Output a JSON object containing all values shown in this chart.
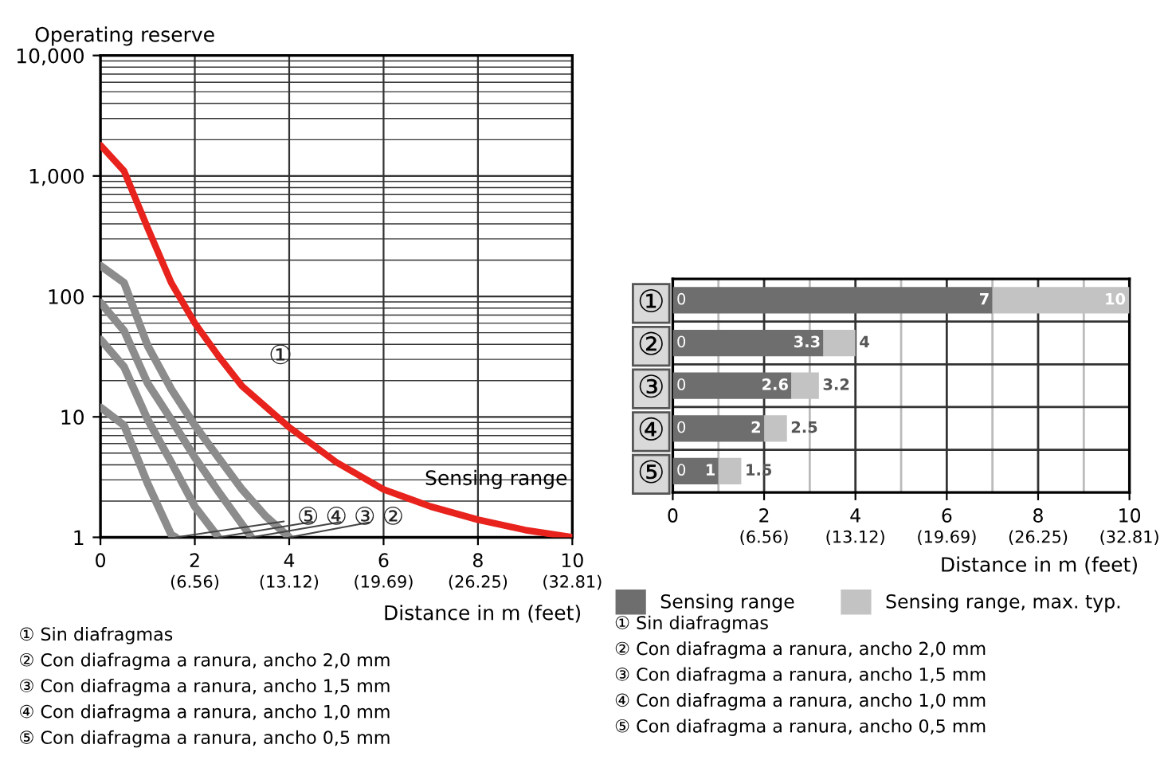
{
  "chart_data": [
    {
      "type": "line",
      "ylabel": "Operating reserve",
      "xlabel": "Distance in m (feet)",
      "log": "y",
      "grid": true,
      "legend": false,
      "marker": "none",
      "line_style": "solid",
      "xlim": [
        0,
        10
      ],
      "ylim": [
        1,
        10000
      ],
      "xticks": [
        0,
        2,
        4,
        6,
        8,
        10
      ],
      "x2lim": [
        0,
        32.81
      ],
      "x2ticks": [
        {
          "value": 6.56,
          "label": "(6.56)"
        },
        {
          "value": 13.12,
          "label": "(13.12)"
        },
        {
          "value": 19.69,
          "label": "(19.69)"
        },
        {
          "value": 26.25,
          "label": "(26.25)"
        },
        {
          "value": 32.81,
          "label": "(32.81)"
        }
      ],
      "yticks": [
        1,
        10,
        100,
        {
          "value": 1000,
          "label": "1,000"
        },
        {
          "value": 10000,
          "label": "10,000"
        }
      ],
      "series": [
        {
          "name": "①",
          "color": "#e8221c",
          "x": [
            0,
            0.5,
            1,
            1.5,
            2,
            2.5,
            3,
            4,
            5,
            6,
            7,
            8,
            9,
            10
          ],
          "values": [
            1800,
            1100,
            370,
            130,
            60,
            32,
            18,
            8.2,
            4.2,
            2.5,
            1.8,
            1.4,
            1.15,
            1
          ]
        },
        {
          "name": "②",
          "color": "#8c8c8c",
          "x": [
            0,
            0.5,
            1,
            1.5,
            2,
            2.5,
            3,
            3.5,
            4
          ],
          "values": [
            180,
            130,
            39,
            17,
            8.5,
            4.6,
            2.5,
            1.5,
            1
          ]
        },
        {
          "name": "③",
          "color": "#8c8c8c",
          "x": [
            0,
            0.5,
            1,
            1.5,
            2,
            2.5,
            3.2
          ],
          "values": [
            89,
            52,
            19,
            9.5,
            4.6,
            2.4,
            1
          ]
        },
        {
          "name": "④",
          "color": "#8c8c8c",
          "x": [
            0,
            0.5,
            1,
            1.5,
            2,
            2.5
          ],
          "values": [
            44,
            26,
            9.5,
            4.2,
            1.8,
            1
          ]
        },
        {
          "name": "⑤",
          "color": "#8c8c8c",
          "x": [
            0,
            0.5,
            1,
            1.5,
            1.6
          ],
          "values": [
            12,
            8.5,
            2.8,
            1.05,
            1
          ]
        }
      ],
      "annotations": [
        "Sensing range",
        "① Sin diafragmas",
        "② Con diafragma a ranura, ancho 2,0 mm",
        "③ Con diafragma a ranura, ancho 1,5 mm",
        "④ Con diafragma a ranura, ancho 1,0 mm",
        "⑤ Con diafragma a ranura, ancho 0,5 mm"
      ]
    },
    {
      "type": "bar",
      "orientation": "horizontal",
      "stacked": true,
      "xlabel": "Distance in m (feet)",
      "grid": true,
      "legend": "bottom",
      "categories": [
        "①",
        "②",
        "③",
        "④",
        "⑤"
      ],
      "xlim": [
        0,
        10
      ],
      "xticks": [
        0,
        2,
        4,
        6,
        8,
        10
      ],
      "x2lim": [
        0,
        32.81
      ],
      "x2ticks": [
        {
          "value": 6.56,
          "label": "(6.56)"
        },
        {
          "value": 13.12,
          "label": "(13.12)"
        },
        {
          "value": 19.69,
          "label": "(19.69)"
        },
        {
          "value": 26.25,
          "label": "(26.25)"
        },
        {
          "value": 32.81,
          "label": "(32.81)"
        }
      ],
      "series": [
        {
          "name": "Sensing range",
          "color": "#6e6e6e",
          "values": [
            7,
            3.3,
            2.6,
            2,
            1
          ]
        },
        {
          "name": "Sensing range, max. typ.",
          "color": "#c3c3c3",
          "values": [
            3,
            0.7,
            0.6,
            0.5,
            0.5
          ]
        }
      ],
      "annotations": [
        {
          "text": "0",
          "x": 0,
          "y": "①"
        },
        {
          "text": "0",
          "x": 0,
          "y": "②"
        },
        {
          "text": "0",
          "x": 0,
          "y": "③"
        },
        {
          "text": "0",
          "x": 0,
          "y": "④"
        },
        {
          "text": "0",
          "x": 0,
          "y": "⑤"
        },
        {
          "text": "7",
          "x": 7,
          "y": "①"
        },
        {
          "text": "3.3",
          "x": 3.3,
          "y": "②"
        },
        {
          "text": "2.6",
          "x": 2.6,
          "y": "③"
        },
        {
          "text": "2",
          "x": 2,
          "y": "④"
        },
        {
          "text": "1",
          "x": 1,
          "y": "⑤"
        },
        {
          "text": "10",
          "x": 10,
          "y": "①"
        },
        {
          "text": "4",
          "x": 4,
          "y": "②"
        },
        {
          "text": "3.2",
          "x": 3.2,
          "y": "③"
        },
        {
          "text": "2.5",
          "x": 2.5,
          "y": "④"
        },
        {
          "text": "1.5",
          "x": 1.5,
          "y": "⑤"
        },
        "① Sin diafragmas",
        "② Con diafragma a ranura, ancho 2,0 mm",
        "③ Con diafragma a ranura, ancho 1,5 mm",
        "④ Con diafragma a ranura, ancho 1,0 mm",
        "⑤ Con diafragma a ranura, ancho 0,5 mm"
      ]
    }
  ]
}
